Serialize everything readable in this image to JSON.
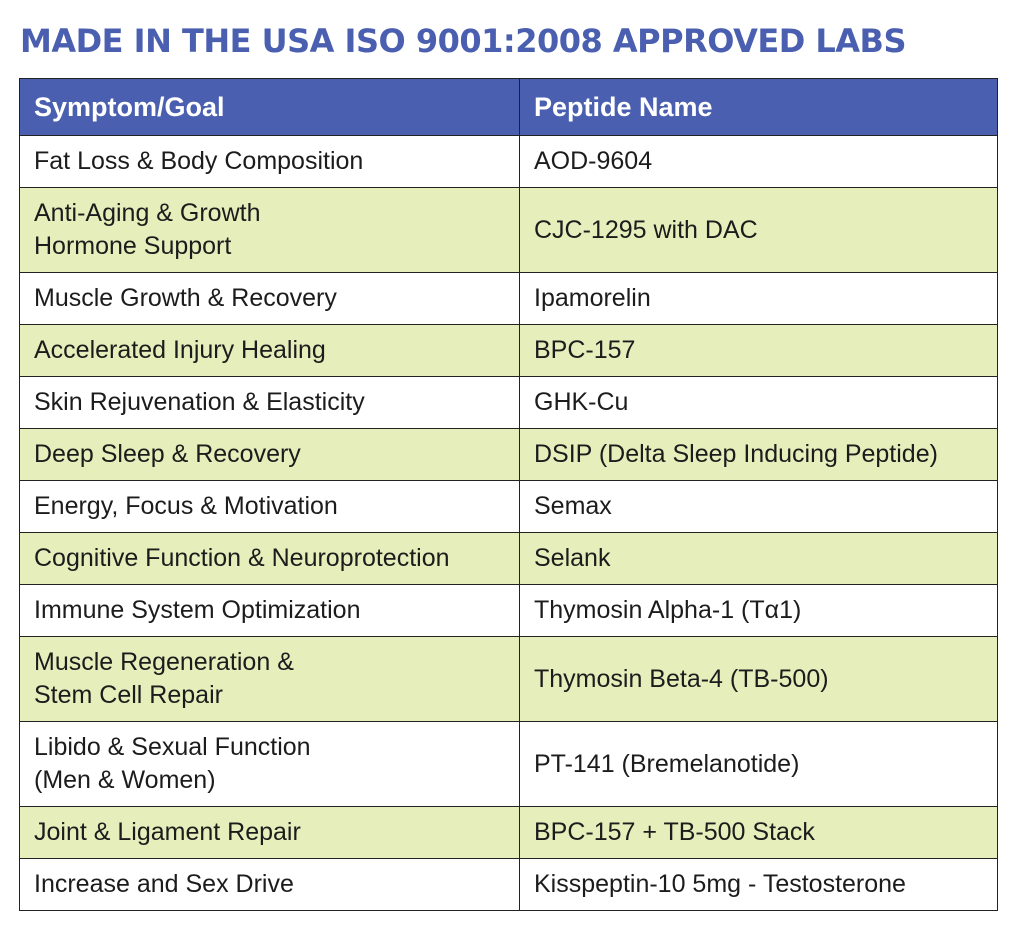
{
  "page": {
    "title": "MADE IN THE USA ISO 9001:2008 APPROVED LABS"
  },
  "table": {
    "headers": [
      "Symptom/Goal",
      "Peptide Name"
    ],
    "rows": [
      {
        "goal": [
          "Fat Loss & Body Composition"
        ],
        "peptide": "AOD-9604"
      },
      {
        "goal": [
          "Anti-Aging & Growth",
          "Hormone Support"
        ],
        "peptide": "CJC-1295 with DAC"
      },
      {
        "goal": [
          "Muscle Growth & Recovery"
        ],
        "peptide": "Ipamorelin"
      },
      {
        "goal": [
          "Accelerated Injury Healing"
        ],
        "peptide": "BPC-157"
      },
      {
        "goal": [
          "Skin Rejuvenation & Elasticity"
        ],
        "peptide": "GHK-Cu"
      },
      {
        "goal": [
          "Deep Sleep & Recovery"
        ],
        "peptide": "DSIP (Delta Sleep Inducing Peptide)"
      },
      {
        "goal": [
          "Energy, Focus & Motivation"
        ],
        "peptide": "Semax"
      },
      {
        "goal": [
          "Cognitive Function & Neuroprotection"
        ],
        "peptide": "Selank"
      },
      {
        "goal": [
          "Immune System Optimization"
        ],
        "peptide": "Thymosin Alpha-1 (Tα1)"
      },
      {
        "goal": [
          "Muscle Regeneration &",
          "Stem Cell Repair"
        ],
        "peptide": "Thymosin Beta-4 (TB-500)"
      },
      {
        "goal": [
          "Libido & Sexual Function",
          "(Men & Women)"
        ],
        "peptide": "PT-141 (Bremelanotide)"
      },
      {
        "goal": [
          "Joint & Ligament Repair"
        ],
        "peptide": "BPC-157 + TB-500 Stack"
      },
      {
        "goal": [
          "Increase and Sex Drive"
        ],
        "peptide": "Kisspeptin-10 5mg  - Testosterone"
      }
    ]
  },
  "colors": {
    "header_blue": "#4a5fb0",
    "row_green": "#e6eebb",
    "row_white": "#ffffff",
    "border": "#222222"
  }
}
